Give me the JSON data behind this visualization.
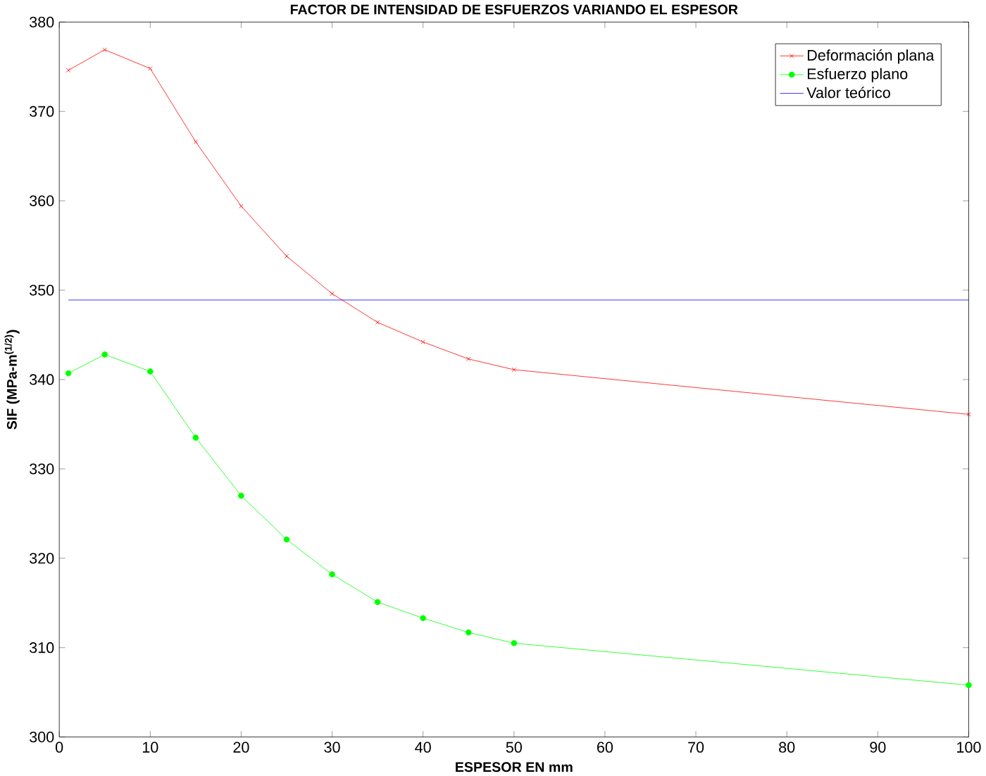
{
  "chart_data": {
    "type": "line",
    "title": "FACTOR DE INTENSIDAD DE ESFUERZOS VARIANDO EL ESPESOR",
    "xlabel": "ESPESOR EN mm",
    "ylabel": "SIF (MPa-m$^{(1/2)}$)",
    "x": [
      1,
      5,
      10,
      15,
      20,
      25,
      30,
      35,
      40,
      45,
      50,
      100
    ],
    "series": [
      {
        "name": "Deformación plana",
        "color": "#ff0000",
        "marker": "cross",
        "values": [
          374.6,
          376.9,
          374.8,
          366.6,
          359.4,
          353.8,
          349.6,
          346.4,
          344.2,
          342.3,
          341.1,
          336.1
        ]
      },
      {
        "name": "Esfuerzo plano",
        "color": "#00ff00",
        "marker": "circle",
        "values": [
          340.7,
          342.8,
          340.9,
          333.5,
          327.0,
          322.1,
          318.2,
          315.1,
          313.3,
          311.7,
          310.5,
          305.8
        ]
      },
      {
        "name": "Valor teórico",
        "color": "#0000ff",
        "marker": "none",
        "x": [
          1,
          100
        ],
        "values": [
          348.9,
          348.9
        ]
      }
    ],
    "xlim": [
      0,
      100
    ],
    "ylim": [
      300,
      380
    ],
    "xticks": [
      0,
      10,
      20,
      30,
      40,
      50,
      60,
      70,
      80,
      90,
      100
    ],
    "yticks": [
      300,
      310,
      320,
      330,
      340,
      350,
      360,
      370,
      380
    ],
    "grid": false,
    "legend": "top right"
  }
}
